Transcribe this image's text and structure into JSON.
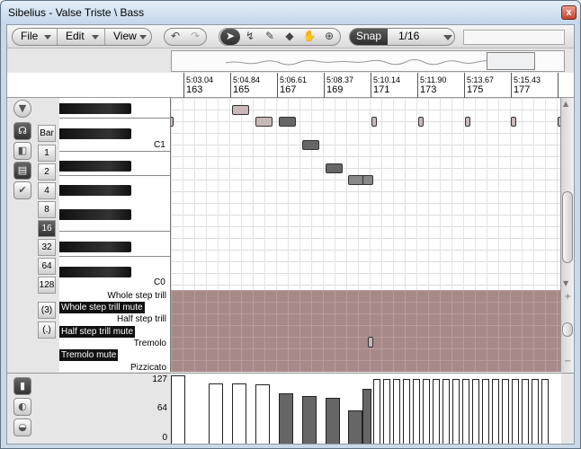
{
  "window": {
    "title": "Sibelius - Valse Triste \\ Bass",
    "close_label": "x"
  },
  "toolbar": {
    "menus": [
      "File",
      "Edit",
      "View"
    ],
    "undo_icon": "undo-icon",
    "redo_icon": "redo-icon",
    "tools": [
      "arrow-icon",
      "lasso-icon",
      "pencil-icon",
      "eraser-icon",
      "hand-icon",
      "zoom-icon"
    ],
    "snap_label": "Snap",
    "snap_value": "1/16",
    "search_placeholder": ""
  },
  "ruler": [
    {
      "time": "5:03.04",
      "bar": "163"
    },
    {
      "time": "5:04.84",
      "bar": "165"
    },
    {
      "time": "5:06.61",
      "bar": "167"
    },
    {
      "time": "5:08.37",
      "bar": "169"
    },
    {
      "time": "5:10.14",
      "bar": "171"
    },
    {
      "time": "5:11.90",
      "bar": "173"
    },
    {
      "time": "5:13.67",
      "bar": "175"
    },
    {
      "time": "5:15.43",
      "bar": "177"
    }
  ],
  "bar_sizes": {
    "header": "Bar",
    "items": [
      "1",
      "2",
      "4",
      "8",
      "16",
      "32",
      "64",
      "128"
    ],
    "selected": "16"
  },
  "extra_buttons": [
    "(3)",
    "(.)"
  ],
  "keyboard_labels": {
    "c1": "C1",
    "c0": "C0"
  },
  "articulations": {
    "whole_trill": "Whole step trill",
    "whole_trill_mute": "Whole step trill mute",
    "half_trill": "Half step trill",
    "half_trill_mute": "Half step trill mute",
    "tremolo": "Tremolo",
    "tremolo_mute": "Tremolo mute",
    "pizzicato": "Pizzicato"
  },
  "velocity": {
    "max": "127",
    "mid": "64",
    "min": "0",
    "values": [
      127,
      112,
      112,
      110,
      95,
      90,
      87,
      63,
      103,
      120,
      120,
      120,
      120,
      120,
      120,
      120,
      120,
      120,
      120,
      120,
      120,
      120,
      120,
      120,
      120,
      120,
      120
    ]
  },
  "colors": {
    "articulation_band": "#a78988",
    "selected_button": "#3a3a3a"
  }
}
